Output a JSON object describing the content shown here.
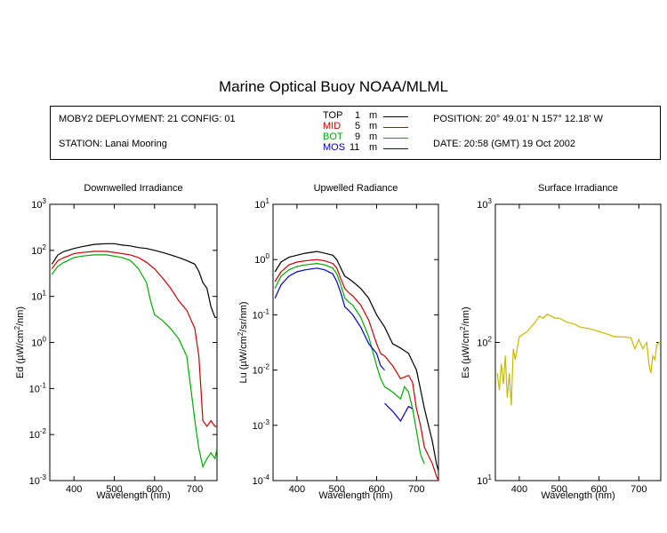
{
  "title": "Marine Optical Buoy NOAA/MLML",
  "info": {
    "deployment": "MOBY2 DEPLOYMENT: 21 CONFIG: 01",
    "station": "STATION: Lanai Mooring",
    "position": "POSITION: 20° 49.01' N   157° 12.18' W",
    "date": "DATE: 20:58 (GMT) 19 Oct 2002",
    "legend": [
      {
        "name": "TOP",
        "depth": "1",
        "unit": "m",
        "color": "#000000"
      },
      {
        "name": "MID",
        "depth": "5",
        "unit": "m",
        "color": "#cc0000"
      },
      {
        "name": "BOT",
        "depth": "9",
        "unit": "m",
        "color": "#00aa00"
      },
      {
        "name": "MOS",
        "depth": "11",
        "unit": "m",
        "color": "#0000cc"
      }
    ]
  },
  "chart_data": [
    {
      "type": "line",
      "title": "Downwelled Irradiance",
      "xlabel": "Wavelength (nm)",
      "ylabel": "Ed  (µW/cm²/nm)",
      "xlim": [
        340,
        755
      ],
      "ylim": [
        0.001,
        1000
      ],
      "yscale": "log",
      "xticks": [
        400,
        500,
        600,
        700
      ],
      "yticks": [
        {
          "base": "10",
          "exp": "-3",
          "value": 0.001
        },
        {
          "base": "10",
          "exp": "-2",
          "value": 0.01
        },
        {
          "base": "10",
          "exp": "-1",
          "value": 0.1
        },
        {
          "base": "10",
          "exp": "0",
          "value": 1
        },
        {
          "base": "10",
          "exp": "1",
          "value": 10
        },
        {
          "base": "10",
          "exp": "2",
          "value": 100
        },
        {
          "base": "10",
          "exp": "3",
          "value": 1000
        }
      ],
      "series": [
        {
          "name": "TOP",
          "color": "#000000",
          "x": [
            345,
            360,
            375,
            385,
            400,
            420,
            450,
            480,
            500,
            520,
            540,
            560,
            580,
            600,
            620,
            640,
            660,
            680,
            700,
            710,
            720,
            730,
            740,
            750,
            755
          ],
          "y": [
            50,
            80,
            95,
            100,
            110,
            120,
            135,
            140,
            140,
            130,
            125,
            115,
            110,
            100,
            90,
            80,
            70,
            60,
            50,
            35,
            20,
            15,
            6,
            3.5,
            3.5
          ]
        },
        {
          "name": "MID",
          "color": "#cc0000",
          "x": [
            345,
            360,
            375,
            385,
            400,
            420,
            450,
            480,
            500,
            520,
            540,
            560,
            580,
            600,
            620,
            640,
            660,
            680,
            700,
            710,
            715,
            720,
            730,
            740,
            750,
            755
          ],
          "y": [
            40,
            60,
            70,
            75,
            85,
            90,
            95,
            95,
            90,
            85,
            80,
            70,
            55,
            40,
            25,
            15,
            8,
            5,
            2,
            0.5,
            0.1,
            0.02,
            0.015,
            0.02,
            0.015,
            0.015
          ]
        },
        {
          "name": "BOT",
          "color": "#00aa00",
          "x": [
            345,
            360,
            375,
            385,
            400,
            420,
            450,
            480,
            500,
            520,
            540,
            560,
            580,
            590,
            600,
            620,
            640,
            660,
            680,
            690,
            700,
            710,
            720,
            730,
            740,
            750,
            755
          ],
          "y": [
            30,
            45,
            55,
            60,
            70,
            75,
            80,
            80,
            75,
            70,
            60,
            40,
            20,
            8,
            4,
            3,
            2,
            1.2,
            0.5,
            0.1,
            0.02,
            0.005,
            0.002,
            0.003,
            0.004,
            0.003,
            0.005
          ]
        }
      ]
    },
    {
      "type": "line",
      "title": "Upwelled Radiance",
      "xlabel": "Wavelength (nm)",
      "ylabel": "Lu  (µW/cm²/sr/nm)",
      "xlim": [
        340,
        755
      ],
      "ylim": [
        0.0001,
        10
      ],
      "yscale": "log",
      "xticks": [
        400,
        500,
        600,
        700
      ],
      "yticks": [
        {
          "base": "10",
          "exp": "-4",
          "value": 0.0001
        },
        {
          "base": "10",
          "exp": "-3",
          "value": 0.001
        },
        {
          "base": "10",
          "exp": "-2",
          "value": 0.01
        },
        {
          "base": "10",
          "exp": "-1",
          "value": 0.1
        },
        {
          "base": "10",
          "exp": "0",
          "value": 1
        },
        {
          "base": "10",
          "exp": "1",
          "value": 10
        }
      ],
      "series": [
        {
          "name": "TOP",
          "color": "#000000",
          "x": [
            345,
            360,
            380,
            400,
            420,
            450,
            470,
            490,
            500,
            510,
            520,
            530,
            540,
            560,
            580,
            600,
            620,
            640,
            660,
            680,
            700,
            720,
            740,
            750,
            755
          ],
          "y": [
            0.6,
            0.9,
            1.1,
            1.2,
            1.3,
            1.4,
            1.3,
            1.2,
            1.0,
            0.7,
            0.5,
            0.45,
            0.4,
            0.3,
            0.2,
            0.1,
            0.06,
            0.03,
            0.025,
            0.02,
            0.01,
            0.002,
            0.0005,
            0.0002,
            0.00015
          ]
        },
        {
          "name": "MID",
          "color": "#cc0000",
          "x": [
            345,
            360,
            380,
            400,
            420,
            450,
            470,
            490,
            500,
            510,
            520,
            530,
            540,
            560,
            580,
            600,
            610,
            620,
            640,
            660,
            680,
            690,
            700,
            710,
            720,
            740,
            750,
            755
          ],
          "y": [
            0.4,
            0.6,
            0.8,
            0.9,
            0.95,
            1.0,
            0.95,
            0.85,
            0.7,
            0.45,
            0.3,
            0.25,
            0.22,
            0.15,
            0.08,
            0.03,
            0.02,
            0.018,
            0.012,
            0.007,
            0.008,
            0.006,
            0.002,
            0.001,
            0.0004,
            0.0002,
            0.00012,
            0.0001
          ]
        },
        {
          "name": "BOT",
          "color": "#00aa00",
          "x": [
            345,
            360,
            380,
            400,
            420,
            450,
            470,
            490,
            500,
            510,
            520,
            530,
            540,
            560,
            580,
            600,
            610,
            620,
            640,
            660,
            670,
            680,
            690,
            700,
            710,
            720
          ],
          "y": [
            0.3,
            0.5,
            0.65,
            0.75,
            0.8,
            0.85,
            0.8,
            0.7,
            0.55,
            0.35,
            0.2,
            0.17,
            0.15,
            0.09,
            0.04,
            0.012,
            0.007,
            0.005,
            0.004,
            0.003,
            0.005,
            0.004,
            0.002,
            0.0008,
            0.0003,
            0.0002
          ]
        },
        {
          "name": "MOS",
          "color": "#0000cc",
          "x": [
            345,
            360,
            380,
            400,
            420,
            450,
            470,
            490,
            500,
            510,
            520,
            530,
            540,
            560,
            580,
            600,
            610,
            620
          ],
          "y": [
            0.2,
            0.35,
            0.5,
            0.6,
            0.65,
            0.7,
            0.65,
            0.55,
            0.4,
            0.25,
            0.14,
            0.12,
            0.1,
            0.06,
            0.03,
            0.02,
            0.012,
            0.01
          ]
        },
        {
          "name": "MOS",
          "color": "#0000cc",
          "x": [
            620,
            640,
            660,
            680,
            690
          ],
          "y": [
            0.0025,
            0.0018,
            0.0012,
            0.0022,
            0.002
          ]
        }
      ]
    },
    {
      "type": "line",
      "title": "Surface Irradiance",
      "xlabel": "Wavelength (nm)",
      "ylabel": "Es  (µW/cm²/nm)",
      "xlim": [
        340,
        755
      ],
      "ylim": [
        10,
        1000
      ],
      "yscale": "log",
      "xticks": [
        400,
        500,
        600,
        700
      ],
      "yticks": [
        {
          "base": "10",
          "exp": "1",
          "value": 10
        },
        {
          "base": "10",
          "exp": "2",
          "value": 100
        },
        {
          "base": "10",
          "exp": "3",
          "value": 1000
        }
      ],
      "series": [
        {
          "name": "Surface",
          "color": "#c8b800",
          "x": [
            345,
            350,
            355,
            360,
            365,
            370,
            375,
            380,
            385,
            390,
            400,
            410,
            420,
            430,
            440,
            450,
            460,
            470,
            480,
            490,
            500,
            510,
            520,
            530,
            540,
            550,
            560,
            580,
            600,
            620,
            640,
            660,
            680,
            690,
            700,
            710,
            720,
            725,
            730,
            735,
            740,
            745,
            750,
            755
          ],
          "y": [
            60,
            45,
            70,
            50,
            80,
            40,
            60,
            35,
            90,
            75,
            110,
            115,
            120,
            130,
            140,
            155,
            150,
            160,
            155,
            150,
            150,
            145,
            140,
            138,
            135,
            130,
            128,
            125,
            120,
            115,
            110,
            110,
            108,
            90,
            105,
            90,
            100,
            70,
            60,
            80,
            75,
            95,
            100,
            100
          ]
        }
      ]
    }
  ]
}
